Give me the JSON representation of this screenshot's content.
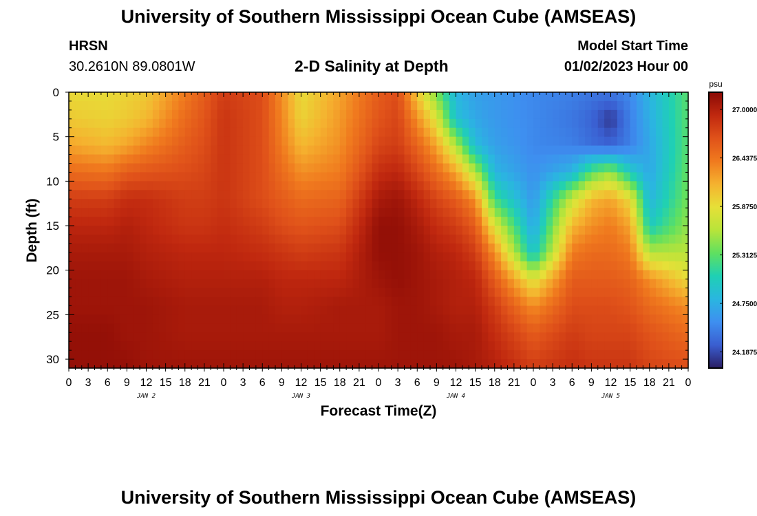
{
  "header": {
    "title": "University of Southern Mississippi Ocean Cube (AMSEAS)",
    "station_code": "HRSN",
    "station_coords": "30.2610N  89.0801W",
    "chart_title": "2-D Salinity at Depth",
    "model_start_label": "Model Start Time",
    "model_start_value": "01/02/2023 Hour 00"
  },
  "footer": {
    "title": "University of Southern Mississippi Ocean Cube (AMSEAS)"
  },
  "chart_data": {
    "type": "heatmap",
    "title": "2-D Salinity at Depth",
    "xlabel": "Forecast Time(Z)",
    "ylabel": "Depth (ft)",
    "xlim": [
      0,
      96
    ],
    "ylim": [
      0,
      31
    ],
    "y_inverted": true,
    "x_hours": [
      0,
      3,
      6,
      9,
      12,
      15,
      18,
      21,
      24,
      27,
      30,
      33,
      36,
      39,
      42,
      45,
      48,
      51,
      54,
      57,
      60,
      63,
      66,
      69,
      72,
      75,
      78,
      81,
      84,
      87,
      90,
      93,
      96
    ],
    "x_tick_labels": [
      "0",
      "3",
      "6",
      "9",
      "12",
      "15",
      "18",
      "21",
      "0",
      "3",
      "6",
      "9",
      "12",
      "15",
      "18",
      "21",
      "0",
      "3",
      "6",
      "9",
      "12",
      "15",
      "18",
      "21",
      "0",
      "3",
      "6",
      "9",
      "12",
      "15",
      "18",
      "21",
      "0"
    ],
    "y_ticks": [
      0,
      5,
      10,
      15,
      20,
      25,
      30
    ],
    "y_tick_labels": [
      "0",
      "5",
      "10",
      "15",
      "20",
      "25",
      "30"
    ],
    "day_labels": [
      {
        "label": "JAN 2",
        "hour": 12
      },
      {
        "label": "JAN 3",
        "hour": 36
      },
      {
        "label": "JAN 4",
        "hour": 60
      },
      {
        "label": "JAN 5",
        "hour": 84
      }
    ],
    "colorbar": {
      "unit": "psu",
      "min": 24.0,
      "max": 27.2,
      "tick_values": [
        27.0,
        26.4375,
        25.875,
        25.3125,
        24.75,
        24.1875
      ],
      "tick_labels": [
        "27.0000",
        "26.4375",
        "25.8750",
        "25.3125",
        "24.7500",
        "24.1875"
      ],
      "colors": [
        "#2a1d63",
        "#3a5ed0",
        "#3e8ff0",
        "#2ab6e0",
        "#1fd0b4",
        "#5fe060",
        "#b8e43a",
        "#e6e038",
        "#f5b22f",
        "#f07a1e",
        "#e0521a",
        "#c0280f",
        "#8a0a05"
      ]
    },
    "profiles": {
      "hours": [
        0,
        6,
        9,
        12,
        18,
        21,
        24,
        30,
        33,
        36,
        42,
        48,
        51,
        54,
        57,
        60,
        63,
        66,
        72,
        78,
        81,
        84,
        87,
        90,
        96
      ],
      "depths_ft": [
        0,
        3,
        6,
        9,
        12,
        15,
        18,
        21,
        24,
        27,
        31
      ],
      "salinity": [
        [
          25.9,
          26.0,
          26.2,
          26.5,
          26.8,
          26.95,
          27.05,
          27.1,
          27.1,
          27.15,
          27.15
        ],
        [
          25.9,
          25.95,
          26.1,
          26.45,
          26.8,
          26.95,
          27.05,
          27.1,
          27.1,
          27.15,
          27.15
        ],
        [
          25.95,
          26.0,
          26.2,
          26.6,
          26.9,
          27.0,
          27.05,
          27.1,
          27.1,
          27.1,
          27.15
        ],
        [
          26.0,
          26.1,
          26.35,
          26.65,
          26.9,
          26.95,
          27.0,
          27.05,
          27.1,
          27.1,
          27.1
        ],
        [
          26.4,
          26.5,
          26.6,
          26.7,
          26.8,
          26.85,
          26.95,
          27.0,
          27.05,
          27.05,
          27.1
        ],
        [
          26.6,
          26.65,
          26.7,
          26.75,
          26.8,
          26.85,
          26.95,
          27.0,
          27.05,
          27.05,
          27.1
        ],
        [
          26.8,
          26.85,
          26.85,
          26.85,
          26.85,
          26.9,
          26.95,
          27.0,
          27.05,
          27.05,
          27.1
        ],
        [
          26.7,
          26.7,
          26.7,
          26.7,
          26.7,
          26.8,
          26.9,
          27.0,
          27.05,
          27.05,
          27.1
        ],
        [
          26.3,
          26.35,
          26.4,
          26.5,
          26.6,
          26.7,
          26.85,
          26.95,
          27.0,
          27.05,
          27.1
        ],
        [
          25.9,
          25.95,
          26.1,
          26.3,
          26.5,
          26.65,
          26.8,
          26.95,
          27.0,
          27.05,
          27.1
        ],
        [
          26.2,
          26.25,
          26.3,
          26.4,
          26.55,
          26.7,
          26.85,
          26.95,
          27.05,
          27.05,
          27.1
        ],
        [
          26.6,
          26.65,
          26.75,
          26.9,
          27.05,
          27.15,
          27.15,
          27.1,
          27.05,
          27.05,
          27.1
        ],
        [
          26.7,
          26.75,
          26.8,
          26.95,
          27.1,
          27.15,
          27.15,
          27.15,
          27.1,
          27.1,
          27.1
        ],
        [
          26.0,
          26.3,
          26.55,
          26.75,
          26.95,
          27.05,
          27.1,
          27.1,
          27.1,
          27.1,
          27.1
        ],
        [
          25.4,
          25.8,
          26.2,
          26.5,
          26.75,
          26.9,
          27.0,
          27.05,
          27.05,
          27.1,
          27.1
        ],
        [
          24.8,
          24.9,
          25.6,
          26.2,
          26.6,
          26.8,
          26.95,
          27.0,
          27.0,
          27.05,
          27.1
        ],
        [
          24.65,
          24.7,
          24.85,
          25.6,
          26.3,
          26.6,
          26.8,
          26.95,
          27.0,
          27.05,
          27.05
        ],
        [
          24.6,
          24.6,
          24.65,
          24.8,
          25.2,
          25.8,
          26.3,
          26.6,
          26.8,
          26.9,
          27.0
        ],
        [
          24.5,
          24.5,
          24.5,
          24.55,
          24.6,
          24.7,
          24.9,
          25.8,
          26.3,
          26.6,
          26.8
        ],
        [
          24.45,
          24.4,
          24.45,
          24.8,
          25.7,
          26.1,
          26.4,
          26.6,
          26.7,
          26.8,
          26.9
        ],
        [
          24.4,
          24.3,
          24.35,
          25.3,
          26.1,
          26.3,
          26.5,
          26.6,
          26.7,
          26.75,
          26.85
        ],
        [
          24.4,
          24.1,
          24.3,
          25.5,
          26.2,
          26.4,
          26.5,
          26.6,
          26.7,
          26.75,
          26.85
        ],
        [
          24.5,
          24.45,
          24.45,
          25.0,
          25.9,
          26.2,
          26.4,
          26.55,
          26.65,
          26.75,
          26.85
        ],
        [
          24.8,
          24.75,
          24.7,
          24.7,
          24.8,
          25.0,
          25.6,
          26.3,
          26.5,
          26.65,
          26.75
        ],
        [
          25.3,
          25.3,
          25.3,
          25.35,
          25.4,
          25.5,
          25.6,
          25.9,
          26.3,
          26.5,
          26.7
        ]
      ]
    }
  }
}
